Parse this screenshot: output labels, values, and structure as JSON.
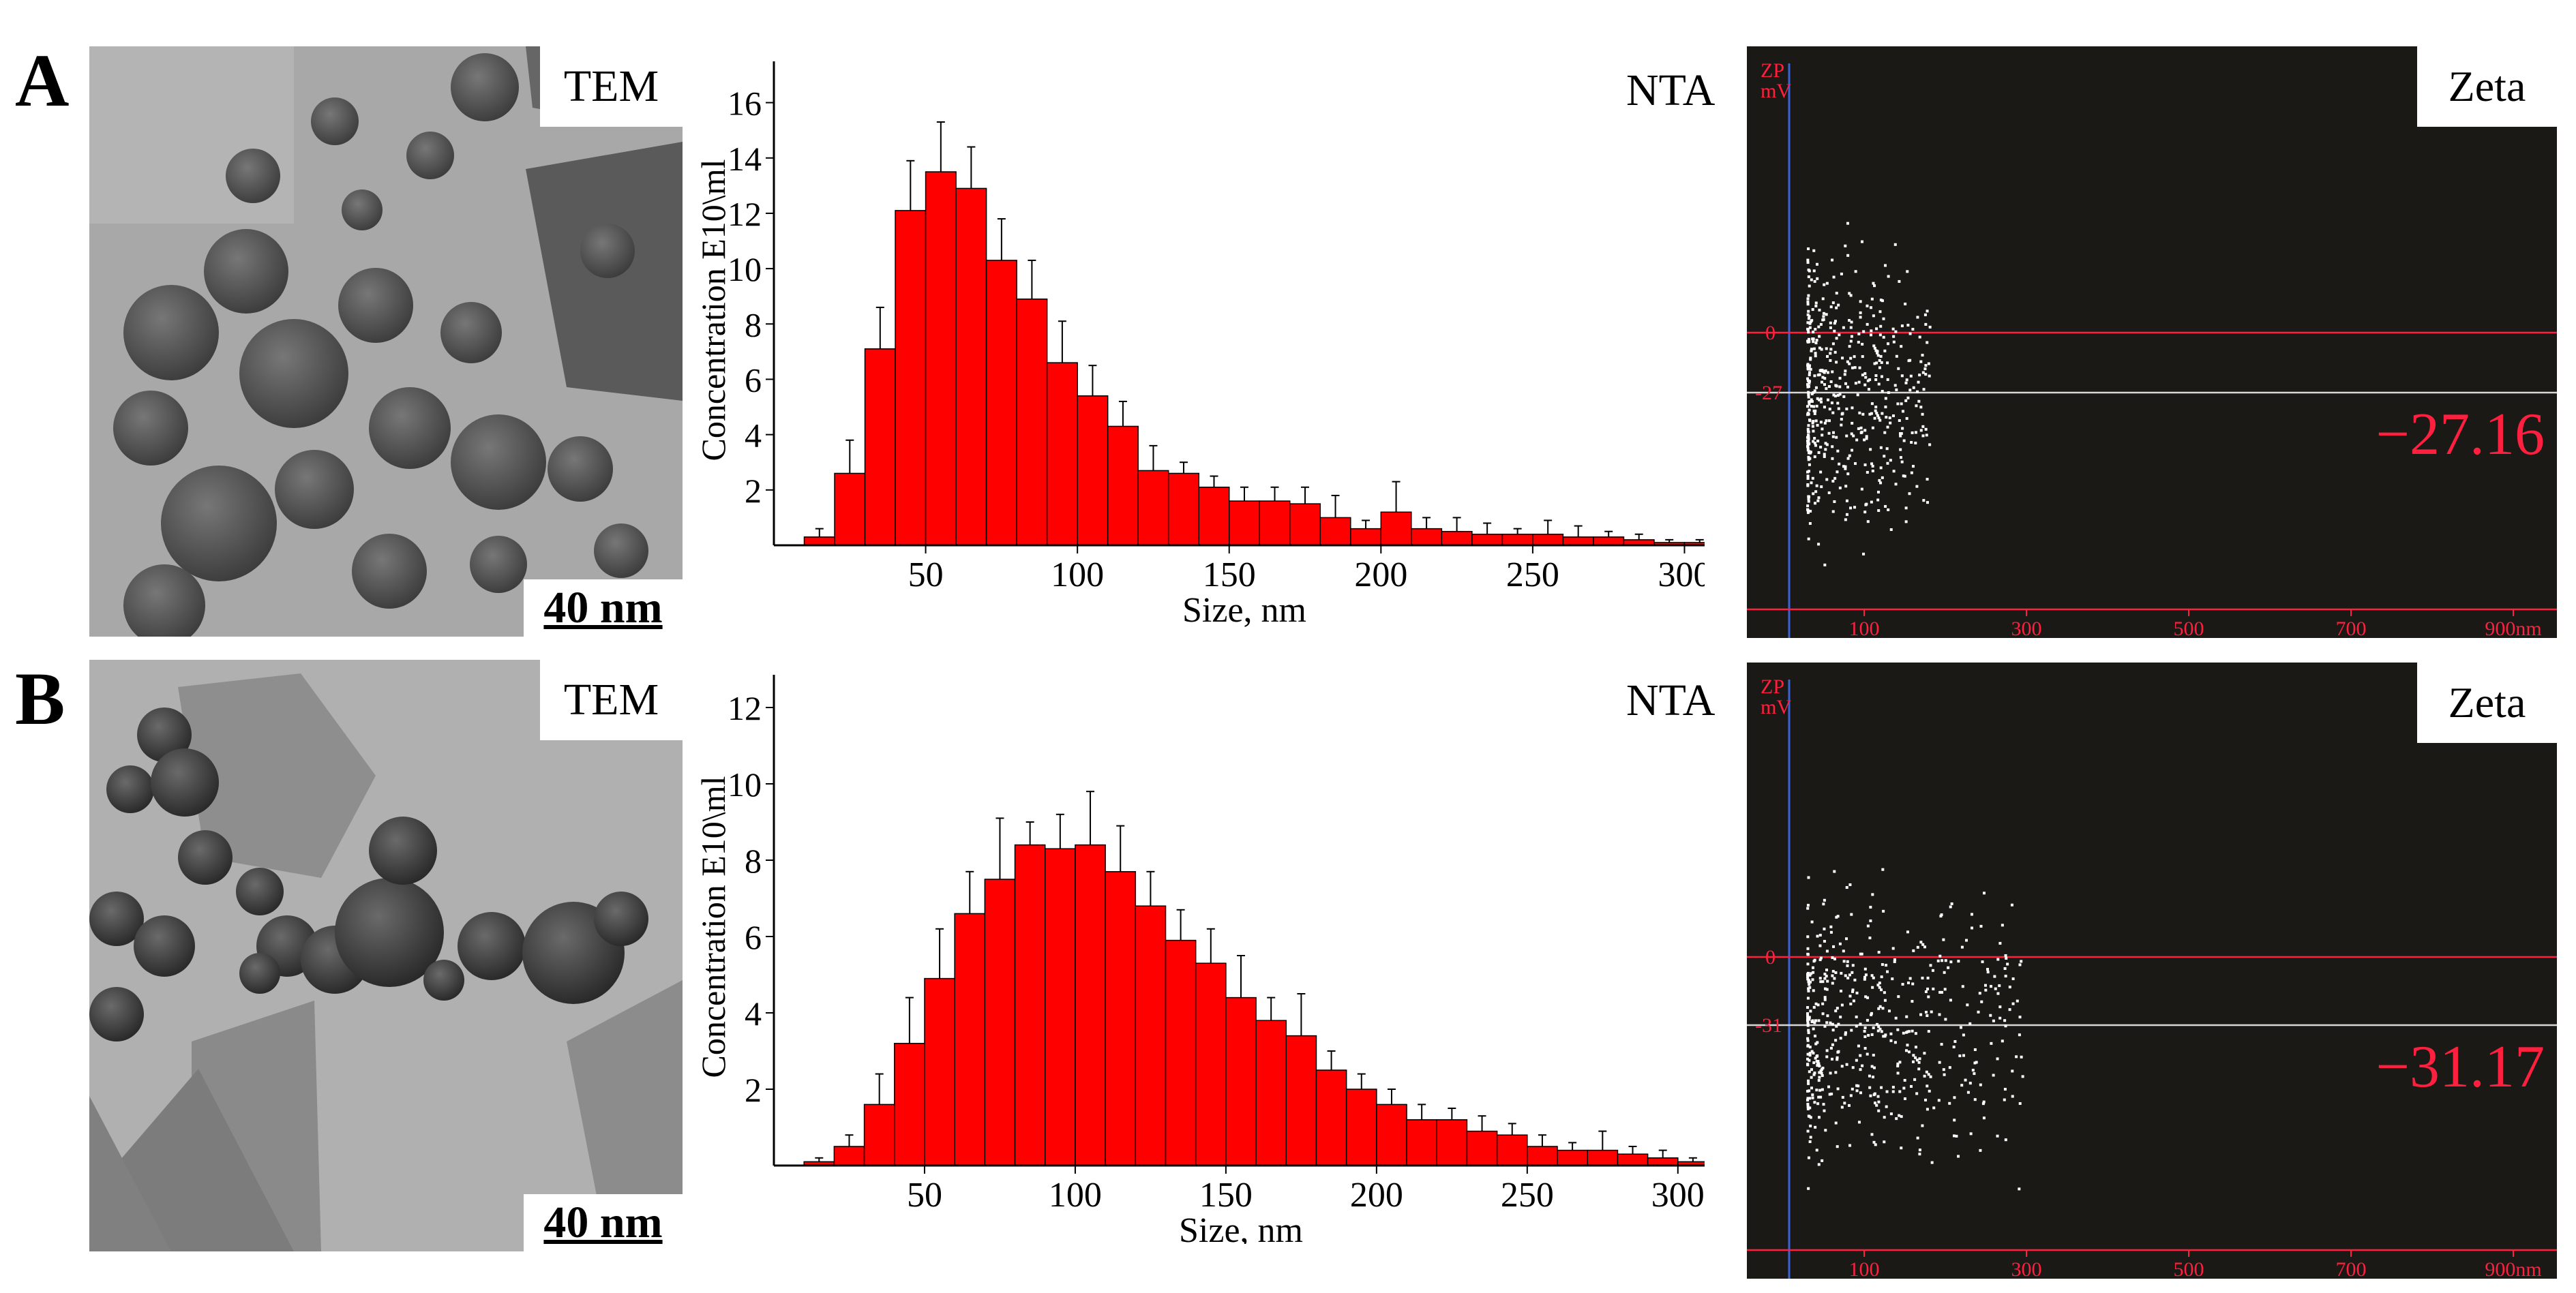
{
  "panels": [
    {
      "letter": "A",
      "tem": {
        "label": "TEM",
        "scale_bar": "40 nm"
      },
      "nta_label": "NTA",
      "zeta": {
        "title": "Zeta",
        "axis_label_top": "ZP",
        "axis_label_bottom": "mV",
        "zero_label": "0",
        "mean_label": "-27",
        "mean_value": -27,
        "value_text": "−27.16",
        "x_ticks": [
          "100",
          "300",
          "500",
          "700",
          "900nm"
        ],
        "accent_color": "#ff1f3f"
      }
    },
    {
      "letter": "B",
      "tem": {
        "label": "TEM",
        "scale_bar": "40 nm"
      },
      "nta_label": "NTA",
      "zeta": {
        "title": "Zeta",
        "axis_label_top": "ZP",
        "axis_label_bottom": "mV",
        "zero_label": "0",
        "mean_label": "-31",
        "mean_value": -31,
        "value_text": "−31.17",
        "x_ticks": [
          "100",
          "300",
          "500",
          "700",
          "900nm"
        ],
        "accent_color": "#ff1f3f"
      }
    }
  ],
  "chart_data": [
    {
      "type": "bar",
      "panel": "A",
      "xlabel": "Size, nm",
      "ylabel": "Concentration E10\\ml",
      "xlim": [
        0,
        310
      ],
      "ylim": [
        0,
        17
      ],
      "x_ticks": [
        50,
        100,
        150,
        200,
        250,
        300
      ],
      "y_ticks": [
        2,
        4,
        6,
        8,
        10,
        12,
        14,
        16
      ],
      "bin_width": 10,
      "bin_centers": [
        15,
        25,
        35,
        45,
        55,
        65,
        75,
        85,
        95,
        105,
        115,
        125,
        135,
        145,
        155,
        165,
        175,
        185,
        195,
        205,
        215,
        225,
        235,
        245,
        255,
        265,
        275,
        285,
        295,
        305
      ],
      "values": [
        0.3,
        2.6,
        7.1,
        12.1,
        13.5,
        12.9,
        10.3,
        8.9,
        6.6,
        5.4,
        4.3,
        2.7,
        2.6,
        2.1,
        1.6,
        1.6,
        1.5,
        1.0,
        0.6,
        1.2,
        0.6,
        0.5,
        0.4,
        0.4,
        0.4,
        0.3,
        0.3,
        0.2,
        0.1,
        0.1
      ],
      "errors": [
        0.3,
        1.2,
        1.5,
        1.8,
        1.8,
        1.5,
        1.5,
        1.4,
        1.5,
        1.1,
        0.9,
        0.9,
        0.4,
        0.4,
        0.5,
        0.5,
        0.6,
        0.8,
        0.3,
        1.1,
        0.4,
        0.5,
        0.4,
        0.2,
        0.5,
        0.4,
        0.2,
        0.2,
        0.1,
        0.1
      ],
      "bar_color": "#ff0000"
    },
    {
      "type": "bar",
      "panel": "B",
      "xlabel": "Size, nm",
      "ylabel": "Concentration E10\\ml",
      "xlim": [
        0,
        310
      ],
      "ylim": [
        0,
        12.5
      ],
      "x_ticks": [
        50,
        100,
        150,
        200,
        250,
        300
      ],
      "y_ticks": [
        2,
        4,
        6,
        8,
        10,
        12
      ],
      "bin_width": 10,
      "bin_centers": [
        15,
        25,
        35,
        45,
        55,
        65,
        75,
        85,
        95,
        105,
        115,
        125,
        135,
        145,
        155,
        165,
        175,
        185,
        195,
        205,
        215,
        225,
        235,
        245,
        255,
        265,
        275,
        285,
        295,
        305
      ],
      "values": [
        0.1,
        0.5,
        1.6,
        3.2,
        4.9,
        6.6,
        7.5,
        8.4,
        8.3,
        8.4,
        7.7,
        6.8,
        5.9,
        5.3,
        4.4,
        3.8,
        3.4,
        2.5,
        2.0,
        1.6,
        1.2,
        1.2,
        0.9,
        0.8,
        0.5,
        0.4,
        0.4,
        0.3,
        0.2,
        0.1
      ],
      "errors": [
        0.1,
        0.3,
        0.8,
        1.2,
        1.3,
        1.1,
        1.6,
        0.6,
        0.9,
        1.4,
        1.2,
        0.9,
        0.8,
        0.9,
        1.1,
        0.6,
        1.1,
        0.5,
        0.4,
        0.4,
        0.4,
        0.3,
        0.4,
        0.3,
        0.3,
        0.2,
        0.5,
        0.2,
        0.2,
        0.1
      ],
      "bar_color": "#ff0000"
    }
  ]
}
